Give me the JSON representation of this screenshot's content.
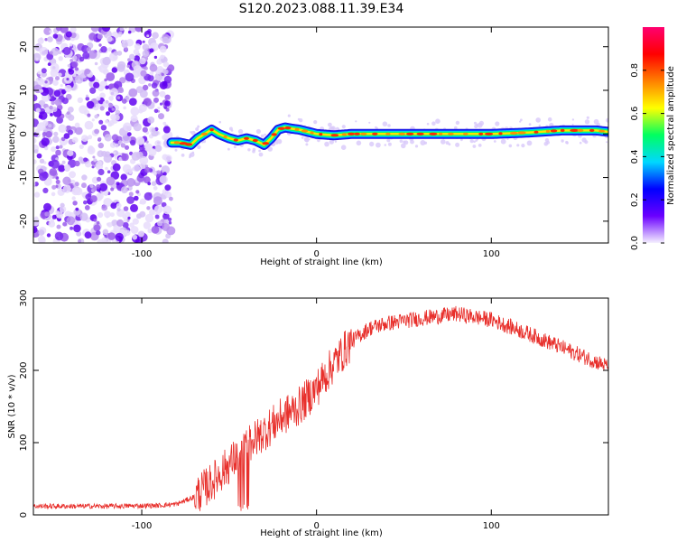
{
  "figure": {
    "title": "S120.2023.088.11.39.E34"
  },
  "chart_data": [
    {
      "type": "heatmap",
      "xlabel": "Height of straight line (km)",
      "ylabel": "Frequency (Hz)",
      "xlim": [
        -162,
        167
      ],
      "ylim": [
        -25,
        24.5
      ],
      "x_ticks": [
        -100,
        0,
        100
      ],
      "y_ticks": [
        -20,
        -10,
        0,
        10,
        20
      ],
      "colorbar": {
        "label": "Normalized spectral amplitude",
        "range": [
          0,
          1
        ],
        "ticks": [
          0.0,
          0.2,
          0.4,
          0.6,
          0.8
        ],
        "colors": [
          "#f5f0ff",
          "#6a00ff",
          "#0000ff",
          "#00d8ff",
          "#00ff60",
          "#ffff00",
          "#ff8000",
          "#ff0000",
          "#ff0070"
        ]
      },
      "noise_region": {
        "x_range": [
          -162,
          -83
        ],
        "y_range": [
          -25,
          24.5
        ]
      },
      "ridge": {
        "x": [
          -83,
          -78,
          -72,
          -68,
          -64,
          -60,
          -56,
          -50,
          -45,
          -40,
          -35,
          -30,
          -26,
          -22,
          -18,
          -14,
          -10,
          -5,
          0,
          10,
          20,
          40,
          60,
          80,
          100,
          120,
          140,
          160,
          167
        ],
        "y": [
          -2,
          -2,
          -2.5,
          -1,
          0,
          1,
          0,
          -1,
          -1.5,
          -1,
          -1.5,
          -2.5,
          -1,
          1,
          1.5,
          1.2,
          1,
          0.5,
          0,
          -0.3,
          0,
          0,
          0,
          0,
          0,
          0.3,
          0.8,
          0.8,
          0.5
        ]
      }
    },
    {
      "type": "line",
      "xlabel": "Height of straight line (km)",
      "ylabel": "SNR (10 * v/v)",
      "xlim": [
        -162,
        167
      ],
      "ylim": [
        0,
        300
      ],
      "x_ticks": [
        -100,
        0,
        100
      ],
      "y_ticks": [
        0,
        100,
        200,
        300
      ],
      "color": "#e8302c",
      "envelope": {
        "x": [
          -162,
          -120,
          -90,
          -80,
          -70,
          -60,
          -50,
          -40,
          -30,
          -20,
          -10,
          0,
          10,
          20,
          30,
          40,
          60,
          80,
          100,
          120,
          140,
          160,
          167
        ],
        "y": [
          12,
          12,
          13,
          15,
          25,
          45,
          70,
          95,
          115,
          135,
          150,
          175,
          210,
          240,
          258,
          265,
          272,
          278,
          270,
          252,
          232,
          212,
          205
        ]
      }
    }
  ]
}
